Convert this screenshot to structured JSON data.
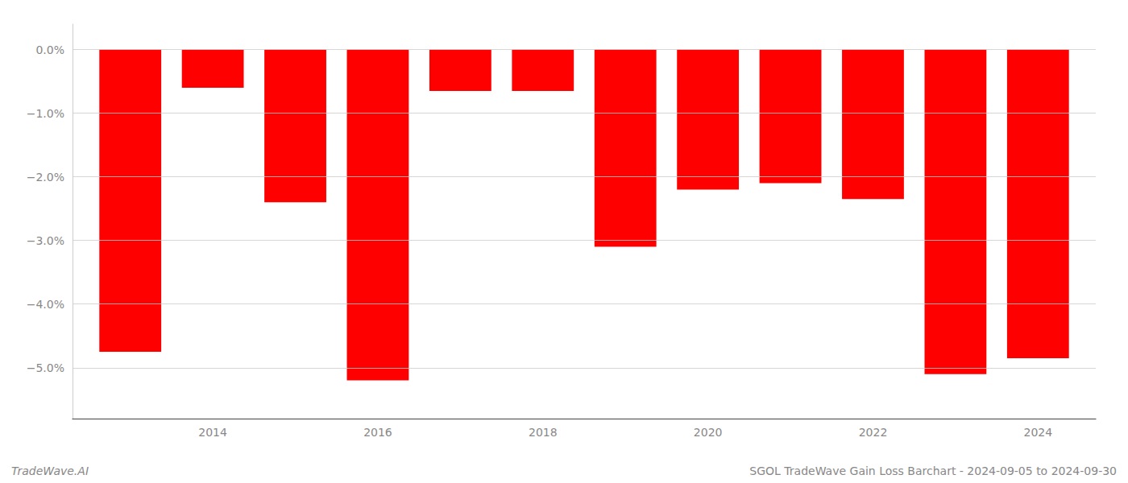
{
  "chart_data": {
    "type": "bar",
    "x": [
      2013,
      2014,
      2015,
      2016,
      2017,
      2018,
      2019,
      2020,
      2021,
      2022,
      2023,
      2024
    ],
    "values": [
      -4.75,
      -0.6,
      -2.4,
      -5.2,
      -0.65,
      -0.65,
      -3.1,
      -2.2,
      -2.1,
      -2.35,
      -5.1,
      -4.85
    ],
    "color": "#ff0000",
    "xlim": [
      2012.3,
      2024.7
    ],
    "xticks": [
      2014,
      2016,
      2018,
      2020,
      2022,
      2024
    ],
    "ylim": [
      -5.8,
      0.4
    ],
    "yticks": [
      {
        "value": 0.0,
        "label": "0.0%"
      },
      {
        "value": -1.0,
        "label": "−1.0%"
      },
      {
        "value": -2.0,
        "label": "−2.0%"
      },
      {
        "value": -3.0,
        "label": "−3.0%"
      },
      {
        "value": -4.0,
        "label": "−4.0%"
      },
      {
        "value": -5.0,
        "label": "−5.0%"
      }
    ],
    "grid": true,
    "annotations": [
      "TradeWave.AI",
      "SGOL TradeWave Gain Loss Barchart - 2024-09-05 to 2024-09-30"
    ]
  }
}
